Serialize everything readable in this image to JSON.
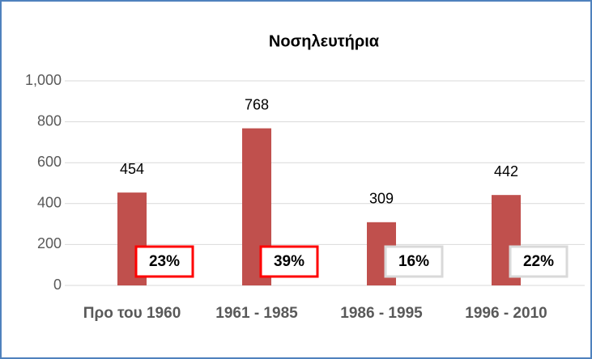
{
  "chart_data": {
    "type": "bar",
    "title": "Νοσηλευτήρια",
    "categories": [
      "Προ του 1960",
      "1961 - 1985",
      "1986 - 1995",
      "1996 - 2010"
    ],
    "values": [
      454,
      768,
      309,
      442
    ],
    "color": "#c0504d",
    "ylim": [
      0,
      1000
    ],
    "yticks": [
      0,
      200,
      400,
      600,
      800,
      {
        "value": 1000,
        "label": "1,000"
      }
    ],
    "grid": true,
    "annotations": [
      {
        "text": "23%",
        "border": "#ff0000"
      },
      {
        "text": "39%",
        "border": "#ff0000"
      },
      {
        "text": "16%",
        "border": "#d9d9d9"
      },
      {
        "text": "22%",
        "border": "#d9d9d9"
      }
    ]
  }
}
